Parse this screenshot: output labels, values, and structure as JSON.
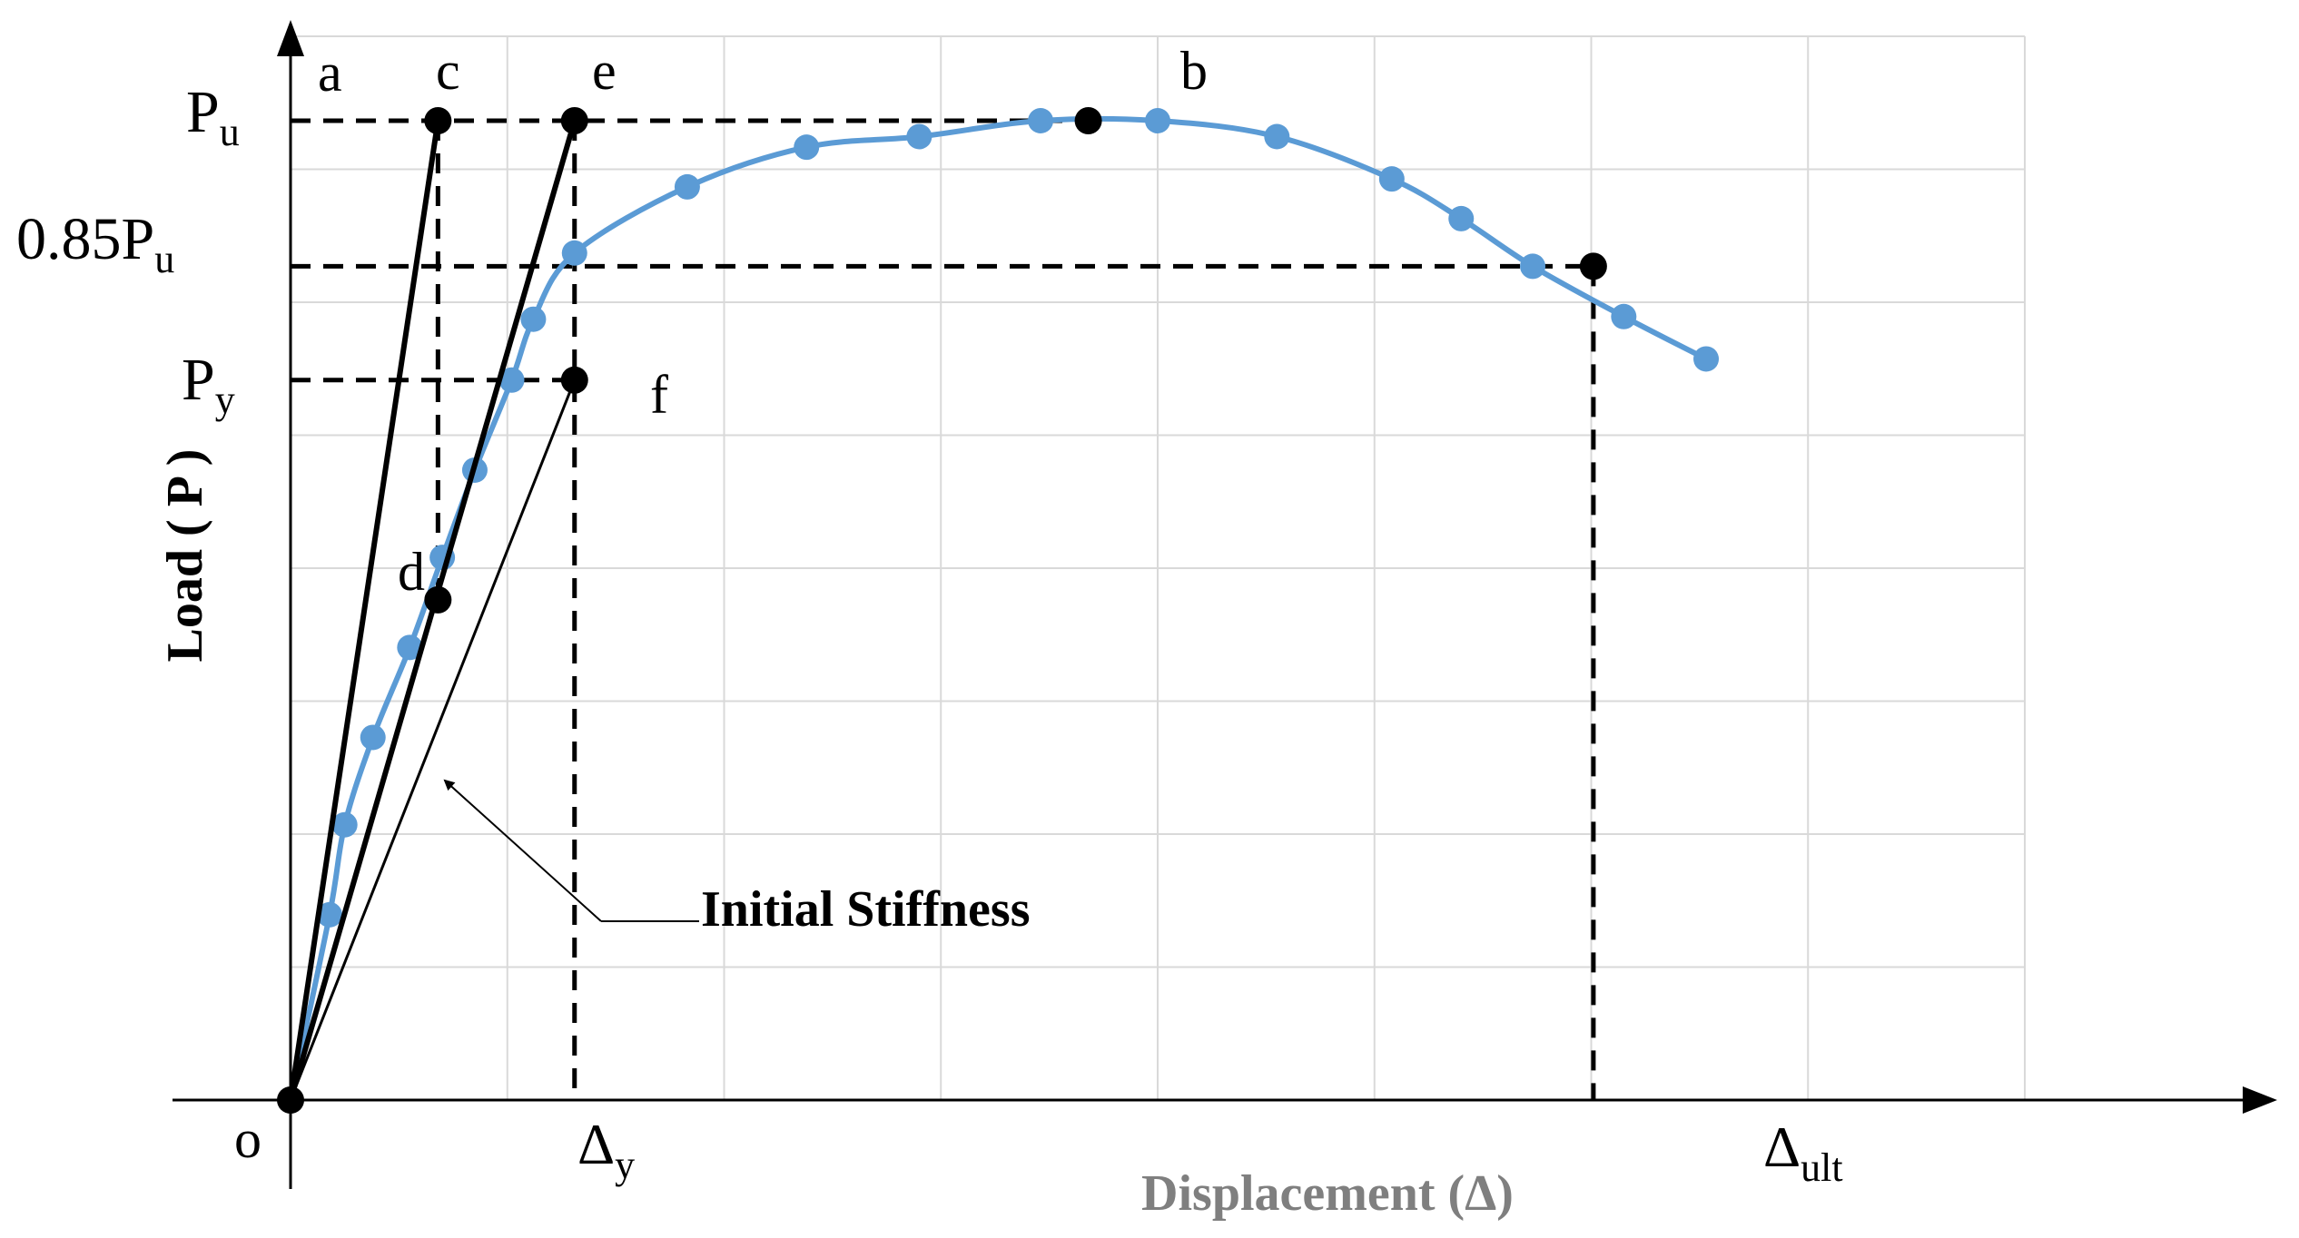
{
  "chart_data": {
    "type": "line",
    "xlabel": "Displacement (Δ)",
    "ylabel": "Load ( P )",
    "xlim": [
      0,
      8
    ],
    "ylim": [
      0,
      3.7
    ],
    "grid": true,
    "series": [
      {
        "name": "",
        "color": "#5b9bd5",
        "x": [
          0.18,
          0.25,
          0.38,
          0.55,
          0.7,
          0.85,
          1.02,
          1.12,
          1.31,
          1.83,
          2.38,
          2.9,
          3.46,
          4.0,
          4.55,
          5.08,
          5.4,
          5.73,
          6.15,
          6.53
        ],
        "y": [
          0.7,
          1.04,
          1.37,
          1.71,
          2.05,
          2.38,
          2.72,
          2.95,
          3.2,
          3.45,
          3.6,
          3.64,
          3.7,
          3.7,
          3.64,
          3.48,
          3.33,
          3.15,
          2.96,
          2.8
        ]
      }
    ],
    "reference_lines": [
      {
        "name": "initial-stiffness",
        "from": [
          0,
          0
        ],
        "to": [
          1.31,
          2.72
        ],
        "weight": "thin"
      },
      {
        "name": "line-o-c",
        "from": [
          0,
          0
        ],
        "to": [
          0.68,
          3.7
        ],
        "weight": "bold"
      },
      {
        "name": "line-o-e",
        "from": [
          0,
          0
        ],
        "to": [
          1.31,
          3.7
        ],
        "weight": "bold"
      }
    ],
    "dashed_guides": [
      {
        "from": [
          0,
          3.7
        ],
        "to": [
          3.68,
          3.7
        ]
      },
      {
        "from": [
          0,
          3.15
        ],
        "to": [
          6.01,
          3.15
        ]
      },
      {
        "from": [
          0,
          2.72
        ],
        "to": [
          1.31,
          2.72
        ]
      },
      {
        "from": [
          0.68,
          3.7
        ],
        "to": [
          0.68,
          1.89
        ]
      },
      {
        "from": [
          1.31,
          3.7
        ],
        "to": [
          1.31,
          0
        ]
      },
      {
        "from": [
          6.01,
          3.15
        ],
        "to": [
          6.01,
          0
        ]
      }
    ],
    "key_points": [
      {
        "label": "o",
        "x": 0,
        "y": 0
      },
      {
        "label": "b",
        "x": 3.68,
        "y": 3.7
      },
      {
        "label": "c",
        "x": 0.68,
        "y": 3.7
      },
      {
        "label": "d",
        "x": 0.68,
        "y": 1.89
      },
      {
        "label": "e",
        "x": 1.31,
        "y": 3.7
      },
      {
        "label": "f",
        "x": 1.31,
        "y": 2.72
      },
      {
        "label": "",
        "x": 6.01,
        "y": 3.15
      }
    ],
    "point_labels": {
      "a": "a",
      "b": "b",
      "c": "c",
      "d": "d",
      "e": "e",
      "f": "f",
      "o": "o"
    },
    "y_markers": {
      "pu": {
        "main": "P",
        "sub": "u"
      },
      "p085": {
        "main": "0.85P",
        "sub": "u"
      },
      "py": {
        "main": "P",
        "sub": "y"
      }
    },
    "x_markers": {
      "dy": {
        "main": "Δ",
        "sub": "y"
      },
      "dult": {
        "main": "Δ",
        "sub": "ult"
      }
    },
    "annotation": "Initial Stiffness"
  }
}
